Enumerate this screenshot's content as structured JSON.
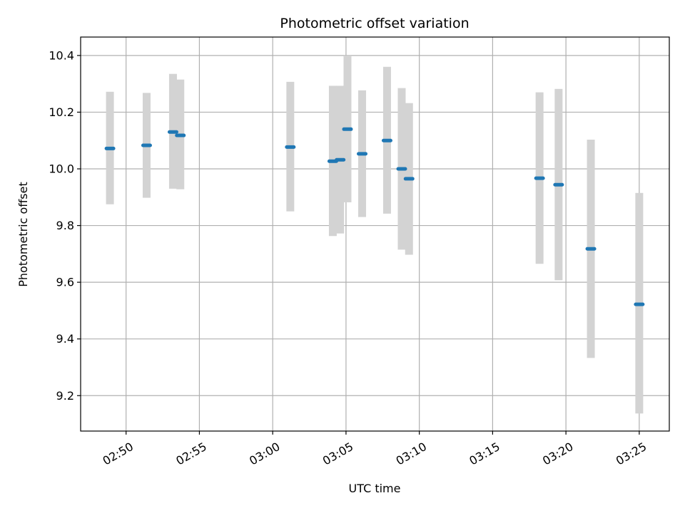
{
  "chart_data": {
    "type": "scatter",
    "title": "Photometric offset variation",
    "xlabel": "UTC time",
    "ylabel": "Photometric offset",
    "x_ticks": [
      "02:50",
      "02:55",
      "03:00",
      "03:05",
      "03:10",
      "03:15",
      "03:20",
      "03:25"
    ],
    "x_tick_minutes": [
      50,
      55,
      60,
      65,
      70,
      75,
      80,
      85
    ],
    "xlim": [
      46.9,
      87.05
    ],
    "y_ticks": [
      "9.2",
      "9.4",
      "9.6",
      "9.8",
      "10.0",
      "10.2",
      "10.4"
    ],
    "y_tick_values": [
      9.2,
      9.4,
      9.6,
      9.8,
      10.0,
      10.2,
      10.4
    ],
    "ylim": [
      9.075,
      10.465
    ],
    "grid": true,
    "colors": {
      "marker": "#1f77b4",
      "error_bar": "#d3d3d3",
      "grid": "#b0b0b0"
    },
    "series": [
      {
        "points": [
          {
            "minute": 48.9,
            "y": 10.072,
            "y_low": 9.875,
            "y_high": 10.272
          },
          {
            "minute": 51.4,
            "y": 10.083,
            "y_low": 9.898,
            "y_high": 10.268
          },
          {
            "minute": 53.2,
            "y": 10.13,
            "y_low": 9.93,
            "y_high": 10.335
          },
          {
            "minute": 53.7,
            "y": 10.118,
            "y_low": 9.928,
            "y_high": 10.315
          },
          {
            "minute": 61.2,
            "y": 10.077,
            "y_low": 9.85,
            "y_high": 10.307
          },
          {
            "minute": 64.1,
            "y": 10.027,
            "y_low": 9.763,
            "y_high": 10.293
          },
          {
            "minute": 64.6,
            "y": 10.032,
            "y_low": 9.772,
            "y_high": 10.293
          },
          {
            "minute": 65.1,
            "y": 10.14,
            "y_low": 9.882,
            "y_high": 10.4
          },
          {
            "minute": 66.1,
            "y": 10.053,
            "y_low": 9.83,
            "y_high": 10.277
          },
          {
            "minute": 67.8,
            "y": 10.1,
            "y_low": 9.842,
            "y_high": 10.36
          },
          {
            "minute": 68.8,
            "y": 10.0,
            "y_low": 9.715,
            "y_high": 10.285
          },
          {
            "minute": 69.3,
            "y": 9.965,
            "y_low": 9.697,
            "y_high": 10.232
          },
          {
            "minute": 78.2,
            "y": 9.967,
            "y_low": 9.665,
            "y_high": 10.27
          },
          {
            "minute": 79.5,
            "y": 9.944,
            "y_low": 9.607,
            "y_high": 10.282
          },
          {
            "minute": 81.7,
            "y": 9.718,
            "y_low": 9.333,
            "y_high": 10.103
          },
          {
            "minute": 85.0,
            "y": 9.522,
            "y_low": 9.137,
            "y_high": 9.915
          }
        ]
      }
    ]
  }
}
